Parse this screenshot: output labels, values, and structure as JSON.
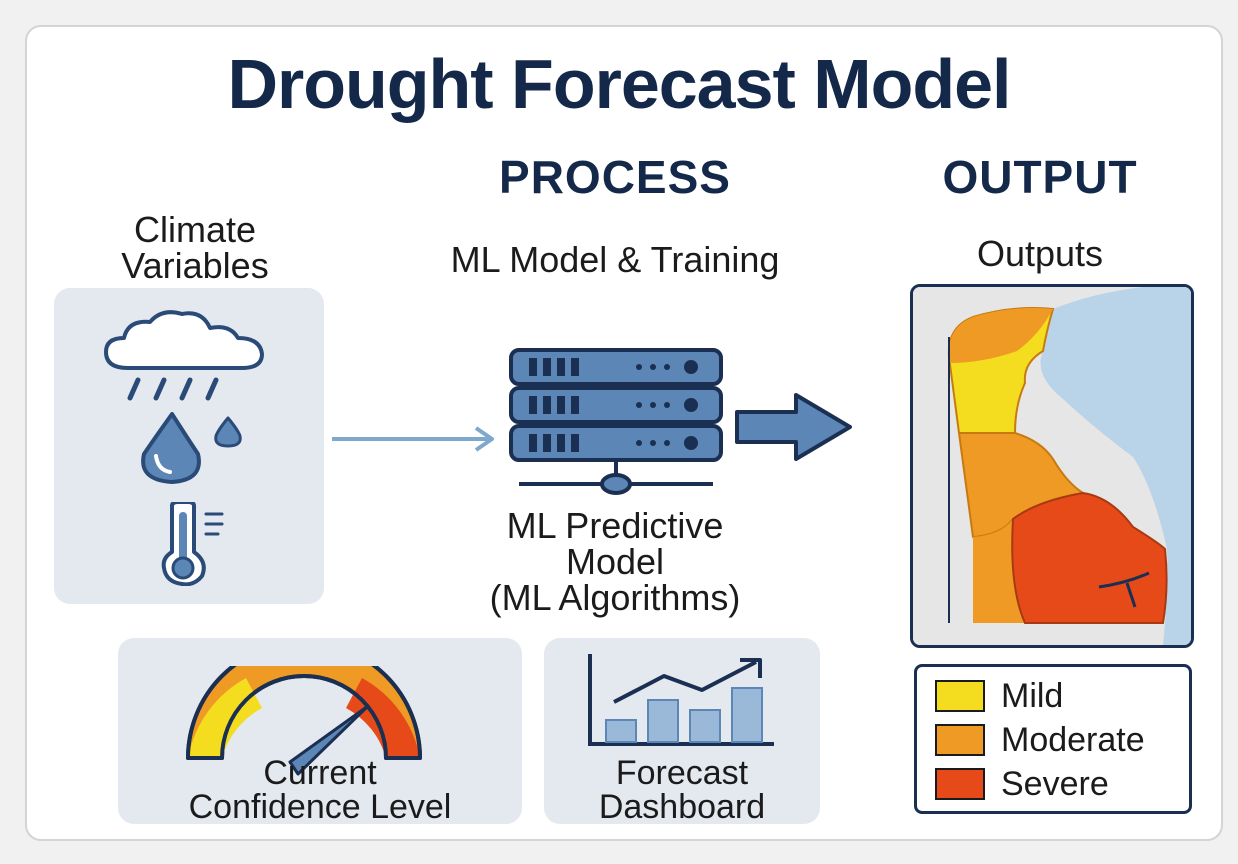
{
  "title": "Drought Forecast Model",
  "headings": {
    "process": "PROCESS",
    "output": "OUTPUT"
  },
  "inputs": {
    "label_line1": "Climate",
    "label_line2": "Variables",
    "icons": [
      "rain-cloud-icon",
      "water-drops-icon",
      "thermometer-icon"
    ]
  },
  "process": {
    "subtitle": "ML Model & Training",
    "model_line1": "ML Predictive",
    "model_line2": "Model",
    "model_line3": "(ML Algorithms)",
    "icon": "server-stack-icon"
  },
  "output": {
    "subtitle": "Outputs",
    "map_icon": "drought-map"
  },
  "legend": [
    {
      "label": "Mild",
      "color": "#f4dd1e"
    },
    {
      "label": "Moderate",
      "color": "#ee9a24"
    },
    {
      "label": "Severe",
      "color": "#e64a19"
    }
  ],
  "bottom_panels": {
    "confidence_line1": "Current",
    "confidence_line2": "Confidence Level",
    "dashboard_line1": "Forecast",
    "dashboard_line2": "Dashboard"
  },
  "colors": {
    "navy": "#14284a",
    "icon_blue": "#5b86b5",
    "panel_bg": "#e4e8ef",
    "water": "#b9d3e8"
  }
}
